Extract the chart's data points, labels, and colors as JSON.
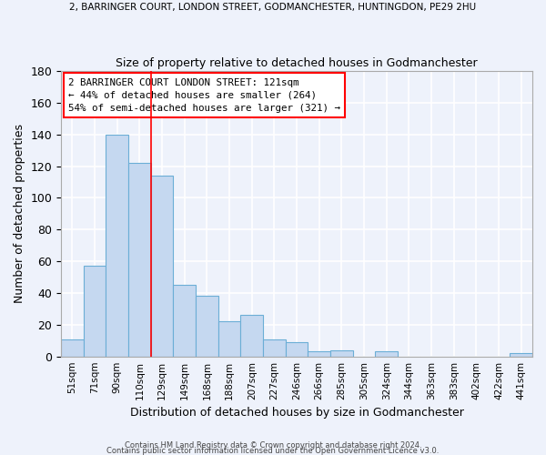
{
  "title_top": "2, BARRINGER COURT, LONDON STREET, GODMANCHESTER, HUNTINGDON, PE29 2HU",
  "title_sub": "Size of property relative to detached houses in Godmanchester",
  "xlabel": "Distribution of detached houses by size in Godmanchester",
  "ylabel": "Number of detached properties",
  "bar_labels": [
    "51sqm",
    "71sqm",
    "90sqm",
    "110sqm",
    "129sqm",
    "149sqm",
    "168sqm",
    "188sqm",
    "207sqm",
    "227sqm",
    "246sqm",
    "266sqm",
    "285sqm",
    "305sqm",
    "324sqm",
    "344sqm",
    "363sqm",
    "383sqm",
    "402sqm",
    "422sqm",
    "441sqm"
  ],
  "bar_values": [
    11,
    57,
    140,
    122,
    114,
    45,
    38,
    22,
    26,
    11,
    9,
    3,
    4,
    0,
    3,
    0,
    0,
    0,
    0,
    0,
    2
  ],
  "bar_color": "#c5d8f0",
  "bar_edge_color": "#6baed6",
  "ylim": [
    0,
    180
  ],
  "yticks": [
    0,
    20,
    40,
    60,
    80,
    100,
    120,
    140,
    160,
    180
  ],
  "red_line_after_bar_index": 3,
  "annotation_line1": "2 BARRINGER COURT LONDON STREET: 121sqm",
  "annotation_line2": "← 44% of detached houses are smaller (264)",
  "annotation_line3": "54% of semi-detached houses are larger (321) →",
  "footer1": "Contains HM Land Registry data © Crown copyright and database right 2024.",
  "footer2": "Contains public sector information licensed under the Open Government Licence v3.0.",
  "background_color": "#eef2fb",
  "grid_color": "#ffffff"
}
